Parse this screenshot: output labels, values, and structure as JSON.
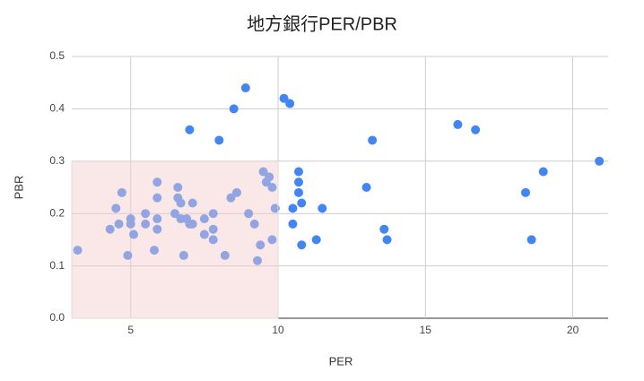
{
  "chart_data": {
    "type": "scatter",
    "title": "地方銀行PER/PBR",
    "x_label": "PER",
    "y_label": "PBR",
    "series": [
      {
        "name": "PBR",
        "color": "#4285f4",
        "x": [
          3.2,
          4.3,
          4.5,
          4.6,
          4.7,
          4.9,
          5.0,
          5.0,
          5.1,
          5.5,
          5.5,
          5.8,
          5.9,
          5.9,
          5.9,
          5.9,
          6.5,
          6.6,
          6.6,
          6.7,
          6.7,
          6.8,
          6.9,
          7.0,
          7.0,
          7.1,
          7.1,
          7.5,
          7.5,
          7.8,
          7.8,
          7.8,
          8.0,
          8.2,
          8.4,
          8.5,
          8.6,
          8.9,
          9.0,
          9.2,
          9.3,
          9.4,
          9.5,
          9.6,
          9.7,
          9.8,
          9.8,
          9.9,
          10.2,
          10.4,
          10.5,
          10.5,
          10.7,
          10.7,
          10.7,
          10.8,
          10.8,
          11.3,
          11.5,
          13.0,
          13.2,
          13.6,
          13.7,
          16.1,
          16.7,
          18.4,
          18.6,
          19.0,
          20.9
        ],
        "values": [
          0.13,
          0.17,
          0.21,
          0.18,
          0.24,
          0.12,
          0.19,
          0.18,
          0.16,
          0.2,
          0.18,
          0.13,
          0.26,
          0.23,
          0.19,
          0.17,
          0.2,
          0.25,
          0.23,
          0.22,
          0.19,
          0.12,
          0.19,
          0.36,
          0.18,
          0.22,
          0.18,
          0.19,
          0.16,
          0.2,
          0.17,
          0.15,
          0.34,
          0.12,
          0.23,
          0.4,
          0.24,
          0.44,
          0.2,
          0.18,
          0.11,
          0.14,
          0.28,
          0.26,
          0.27,
          0.25,
          0.15,
          0.21,
          0.42,
          0.41,
          0.21,
          0.18,
          0.28,
          0.26,
          0.24,
          0.22,
          0.14,
          0.15,
          0.21,
          0.25,
          0.34,
          0.17,
          0.15,
          0.37,
          0.36,
          0.24,
          0.15,
          0.28,
          0.3
        ]
      }
    ],
    "xlim": [
      3,
      21.2
    ],
    "xticks": [
      5,
      10,
      15,
      20
    ],
    "ylim": [
      0,
      0.5
    ],
    "yticks": [
      {
        "value": 0,
        "label": "0.0"
      },
      0.1,
      0.2,
      0.3,
      0.4,
      0.5
    ],
    "grid": true,
    "highlight_region": {
      "x": [
        3,
        10
      ],
      "y": [
        0,
        0.3
      ],
      "color": "#f4cccc"
    }
  }
}
